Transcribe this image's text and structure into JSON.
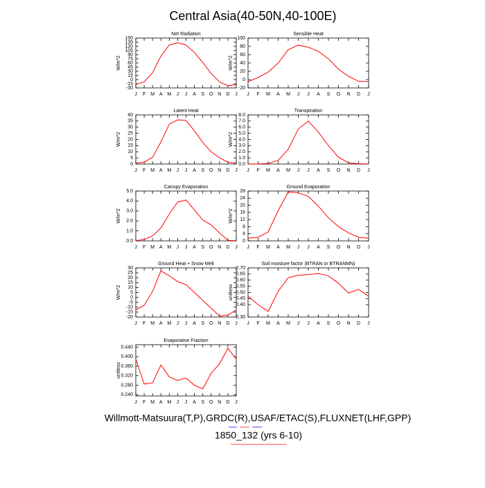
{
  "title": "Central Asia(40-50N,40-100E)",
  "footer": [
    "Willmott-Matsuura(T,P),GRDC(R),USAF/ETAC(S),FLUXNET(LHF,GPP)",
    "1850_132 (yrs 6-10)"
  ],
  "chart_data": [
    {
      "type": "line",
      "title": "Net Radiation",
      "ylabel": "W/m^2",
      "color": "#ff0000",
      "categories": [
        "J",
        "F",
        "M",
        "A",
        "M",
        "J",
        "J",
        "A",
        "S",
        "O",
        "N",
        "D",
        "J"
      ],
      "values": [
        -18,
        -8,
        25,
        85,
        125,
        133,
        125,
        98,
        62,
        22,
        -8,
        -22,
        -18
      ],
      "ylim": [
        -30,
        150
      ],
      "yticks": [
        -30,
        -15,
        0,
        15,
        30,
        45,
        60,
        75,
        90,
        105,
        120,
        135,
        150
      ]
    },
    {
      "type": "line",
      "title": "Sensible Heat",
      "ylabel": "W/m^2",
      "color": "#ff0000",
      "categories": [
        "J",
        "F",
        "M",
        "A",
        "M",
        "J",
        "J",
        "A",
        "S",
        "O",
        "N",
        "D",
        "J"
      ],
      "values": [
        -5,
        5,
        18,
        40,
        72,
        83,
        78,
        68,
        50,
        25,
        8,
        -4,
        -5
      ],
      "ylim": [
        -20,
        100
      ],
      "yticks": [
        -20,
        0,
        20,
        40,
        60,
        80,
        100
      ]
    },
    {
      "type": "line",
      "title": "Latent Heat",
      "ylabel": "W/m^2",
      "color": "#ff0000",
      "categories": [
        "J",
        "F",
        "M",
        "A",
        "M",
        "J",
        "J",
        "A",
        "S",
        "O",
        "N",
        "D",
        "J"
      ],
      "values": [
        0.8,
        1.5,
        5.5,
        18,
        32.5,
        36,
        35.5,
        27,
        17.5,
        10,
        5,
        1.5,
        0.8
      ],
      "ylim": [
        0,
        40
      ],
      "yticks": [
        0,
        5,
        10,
        15,
        20,
        25,
        30,
        35,
        40
      ]
    },
    {
      "type": "line",
      "title": "Transpiration",
      "ylabel": "W/m^2",
      "color": "#ff0000",
      "categories": [
        "J",
        "F",
        "M",
        "A",
        "M",
        "J",
        "J",
        "A",
        "S",
        "O",
        "N",
        "D",
        "J"
      ],
      "values": [
        0.02,
        0.02,
        0.1,
        0.6,
        2.4,
        5.7,
        7.0,
        5.2,
        3.0,
        1.1,
        0.2,
        0.05,
        0.02
      ],
      "ylim": [
        0,
        8
      ],
      "yticks": [
        {
          "value": 0,
          "label": "0.0"
        },
        {
          "value": 1,
          "label": "1.0"
        },
        {
          "value": 2,
          "label": "2.0"
        },
        {
          "value": 3,
          "label": "3.0"
        },
        {
          "value": 4,
          "label": "4.0"
        },
        {
          "value": 5,
          "label": "5.0"
        },
        {
          "value": 6,
          "label": "6.0"
        },
        {
          "value": 7,
          "label": "7.0"
        },
        {
          "value": 8,
          "label": "8.0"
        }
      ]
    },
    {
      "type": "line",
      "title": "Canopy Evaporation",
      "ylabel": "W/m^2",
      "color": "#ff0000",
      "categories": [
        "J",
        "F",
        "M",
        "A",
        "M",
        "J",
        "J",
        "A",
        "S",
        "O",
        "N",
        "D",
        "J"
      ],
      "values": [
        0.02,
        0.15,
        0.5,
        1.3,
        2.7,
        3.9,
        4.1,
        3.1,
        2.1,
        1.6,
        0.8,
        0.05,
        0.02
      ],
      "ylim": [
        0,
        5
      ],
      "yticks": [
        {
          "value": 0,
          "label": "0.0"
        },
        {
          "value": 1,
          "label": "1.0"
        },
        {
          "value": 2,
          "label": "2.0"
        },
        {
          "value": 3,
          "label": "3.0"
        },
        {
          "value": 4,
          "label": "4.0"
        },
        {
          "value": 5,
          "label": "5.0"
        }
      ]
    },
    {
      "type": "line",
      "title": "Ground Evaporation",
      "ylabel": "W/m^2",
      "color": "#ff0000",
      "categories": [
        "J",
        "F",
        "M",
        "A",
        "M",
        "J",
        "J",
        "A",
        "S",
        "O",
        "N",
        "D",
        "J"
      ],
      "values": [
        1.5,
        2,
        5,
        17,
        27.5,
        27,
        25,
        19.5,
        13,
        8,
        4.5,
        2,
        1.5
      ],
      "ylim": [
        0,
        28
      ],
      "yticks": [
        0,
        4,
        8,
        12,
        16,
        20,
        24,
        28
      ]
    },
    {
      "type": "line",
      "title": "Ground Heat + Snow Melt",
      "ylabel": "W/m^2",
      "color": "#ff0000",
      "categories": [
        "J",
        "F",
        "M",
        "A",
        "M",
        "J",
        "J",
        "A",
        "S",
        "O",
        "N",
        "D",
        "J"
      ],
      "values": [
        -13,
        -8,
        6,
        27,
        22,
        16,
        13,
        5,
        -3,
        -11,
        -19,
        -18,
        -13
      ],
      "ylim": [
        -20,
        30
      ],
      "yticks": [
        -20,
        -15,
        -10,
        -5,
        0,
        5,
        10,
        15,
        20,
        25,
        30
      ]
    },
    {
      "type": "line",
      "title": "Soil moisture factor (BTRAN or BTRANMN)",
      "ylabel": "unitless",
      "color": "#ff0000",
      "categories": [
        "J",
        "F",
        "M",
        "A",
        "M",
        "J",
        "J",
        "A",
        "S",
        "O",
        "N",
        "D",
        "J"
      ],
      "values": [
        0.47,
        0.4,
        0.345,
        0.51,
        0.62,
        0.64,
        0.645,
        0.655,
        0.635,
        0.575,
        0.495,
        0.525,
        0.47
      ],
      "ylim": [
        0.3,
        0.7
      ],
      "yticks": [
        {
          "value": 0.3,
          "label": "0.30"
        },
        {
          "value": 0.4,
          "label": "0.40"
        },
        0.45,
        {
          "value": 0.5,
          "label": "0.50"
        },
        0.55,
        {
          "value": 0.6,
          "label": "0.60"
        },
        0.65,
        {
          "value": 0.7,
          "label": "0.70"
        }
      ]
    },
    {
      "type": "line",
      "title": "Evaporative Fraction",
      "ylabel": "unitless",
      "color": "#ff0000",
      "categories": [
        "J",
        "F",
        "M",
        "A",
        "M",
        "J",
        "J",
        "A",
        "S",
        "O",
        "N",
        "D",
        "J"
      ],
      "values": [
        0.39,
        0.285,
        0.29,
        0.365,
        0.315,
        0.3,
        0.31,
        0.28,
        0.265,
        0.33,
        0.37,
        0.435,
        0.39
      ],
      "ylim": [
        0.235,
        0.45
      ],
      "yticks": [
        {
          "value": 0.24,
          "label": "0.240"
        },
        {
          "value": 0.28,
          "label": "0.280"
        },
        {
          "value": 0.32,
          "label": "0.320"
        },
        {
          "value": 0.36,
          "label": "0.360"
        },
        {
          "value": 0.4,
          "label": "0.400"
        },
        {
          "value": 0.44,
          "label": "0.440"
        }
      ]
    }
  ]
}
